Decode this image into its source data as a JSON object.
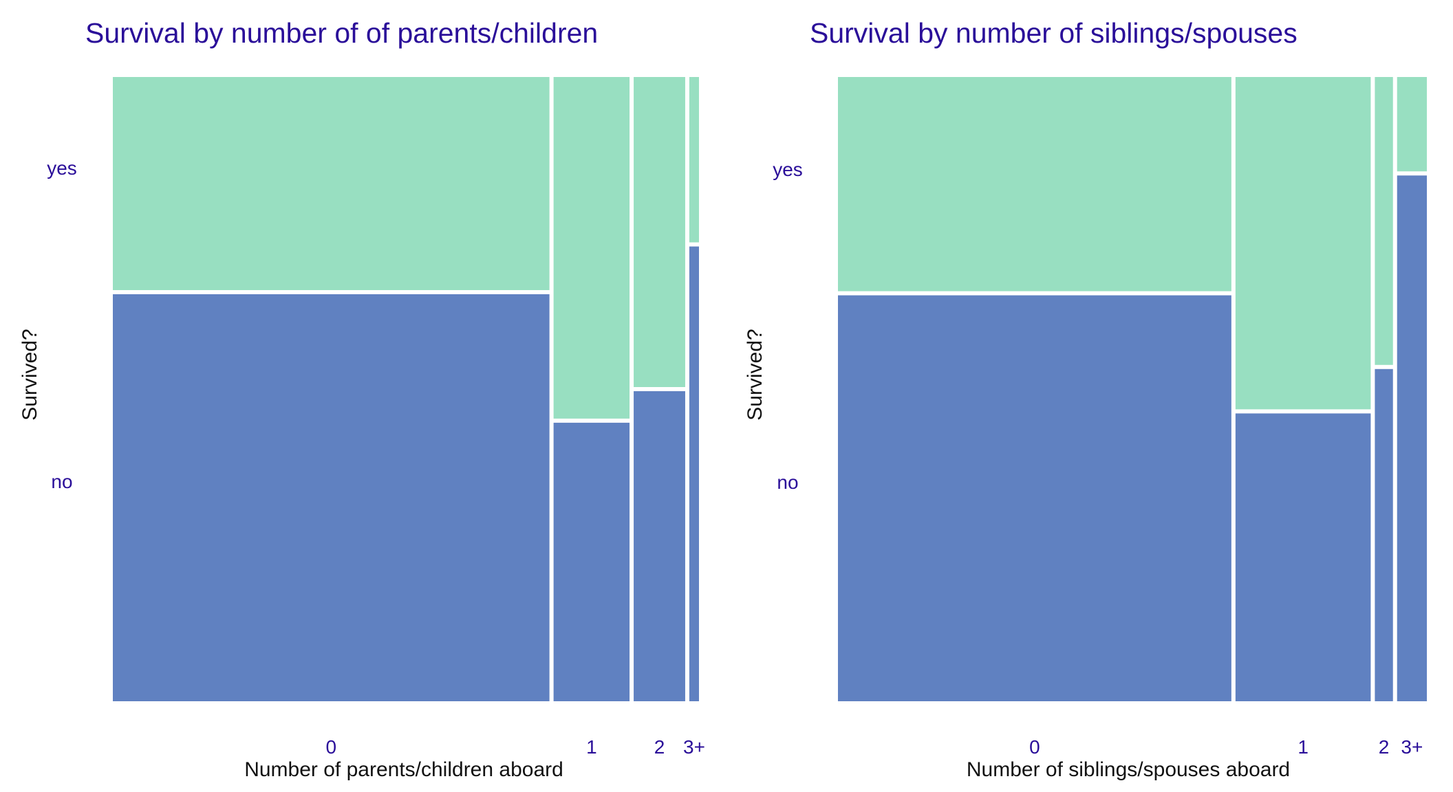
{
  "colors": {
    "yes": "#98dfc1",
    "no": "#6081c1",
    "title": "#2a0e99",
    "background": "#ffffff"
  },
  "row_labels": [
    "yes",
    "no"
  ],
  "chart_data": [
    {
      "type": "mosaic",
      "title": "Survival by number of of parents/children",
      "xlabel": "Number of parents/children aboard",
      "ylabel": "Survived?",
      "categories": [
        "0",
        "1",
        "2",
        "3+"
      ],
      "series": [
        {
          "name": "no",
          "values": [
            445,
            53,
            40,
            11
          ]
        },
        {
          "name": "yes",
          "values": [
            233,
            65,
            40,
            4
          ]
        }
      ]
    },
    {
      "type": "mosaic",
      "title": "Survival by number of siblings/spouses",
      "xlabel": "Number of siblings/spouses aboard",
      "ylabel": "Survived?",
      "categories": [
        "0",
        "1",
        "2",
        "3+"
      ],
      "series": [
        {
          "name": "no",
          "values": [
            398,
            97,
            15,
            39
          ]
        },
        {
          "name": "yes",
          "values": [
            210,
            112,
            13,
            7
          ]
        }
      ]
    }
  ]
}
